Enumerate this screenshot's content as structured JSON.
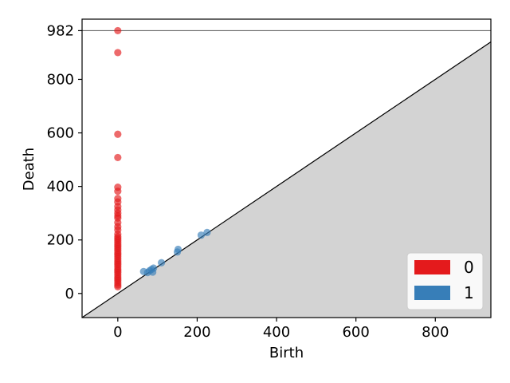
{
  "chart_data": {
    "type": "scatter",
    "title": "",
    "xlabel": "Birth",
    "ylabel": "Death",
    "xlim": [
      -90,
      940
    ],
    "ylim": [
      -90,
      1025
    ],
    "xticks": [
      {
        "value": 0,
        "label": "0"
      },
      {
        "value": 200,
        "label": "200"
      },
      {
        "value": 400,
        "label": "400"
      },
      {
        "value": 600,
        "label": "600"
      },
      {
        "value": 800,
        "label": "800"
      }
    ],
    "yticks": [
      {
        "value": 0,
        "label": "0"
      },
      {
        "value": 200,
        "label": "200"
      },
      {
        "value": 400,
        "label": "400"
      },
      {
        "value": 600,
        "label": "600"
      },
      {
        "value": 800,
        "label": "800"
      },
      {
        "value": 982,
        "label": "982"
      }
    ],
    "infinity_line": 982,
    "grid": false,
    "legend_position": "bottom-right",
    "colors": {
      "dim0": "#e41a1c",
      "dim1": "#377eb8",
      "diagonal_fill": "#d3d3d3",
      "infinity_line": "#666666"
    },
    "series": [
      {
        "name": "0",
        "color": "#e41a1c",
        "points": [
          [
            0,
            982
          ],
          [
            0,
            900
          ],
          [
            0,
            595
          ],
          [
            0,
            508
          ],
          [
            0,
            397
          ],
          [
            0,
            382
          ],
          [
            0,
            355
          ],
          [
            0,
            342
          ],
          [
            0,
            325
          ],
          [
            0,
            312
          ],
          [
            0,
            300
          ],
          [
            0,
            290
          ],
          [
            0,
            282
          ],
          [
            0,
            265
          ],
          [
            0,
            250
          ],
          [
            0,
            238
          ],
          [
            0,
            222
          ],
          [
            0,
            212
          ],
          [
            0,
            205
          ],
          [
            0,
            198
          ],
          [
            0,
            190
          ],
          [
            0,
            182
          ],
          [
            0,
            175
          ],
          [
            0,
            168
          ],
          [
            0,
            160
          ],
          [
            0,
            152
          ],
          [
            0,
            145
          ],
          [
            0,
            138
          ],
          [
            0,
            130
          ],
          [
            0,
            122
          ],
          [
            0,
            115
          ],
          [
            0,
            108
          ],
          [
            0,
            100
          ],
          [
            0,
            92
          ],
          [
            0,
            85
          ],
          [
            0,
            78
          ],
          [
            0,
            70
          ],
          [
            0,
            62
          ],
          [
            0,
            55
          ],
          [
            0,
            48
          ],
          [
            0,
            40
          ],
          [
            0,
            32
          ],
          [
            0,
            25
          ]
        ]
      },
      {
        "name": "1",
        "color": "#377eb8",
        "points": [
          [
            65,
            82
          ],
          [
            75,
            78
          ],
          [
            80,
            85
          ],
          [
            85,
            90
          ],
          [
            90,
            95
          ],
          [
            88,
            80
          ],
          [
            110,
            115
          ],
          [
            150,
            155
          ],
          [
            152,
            165
          ],
          [
            210,
            218
          ],
          [
            225,
            228
          ]
        ]
      }
    ]
  }
}
